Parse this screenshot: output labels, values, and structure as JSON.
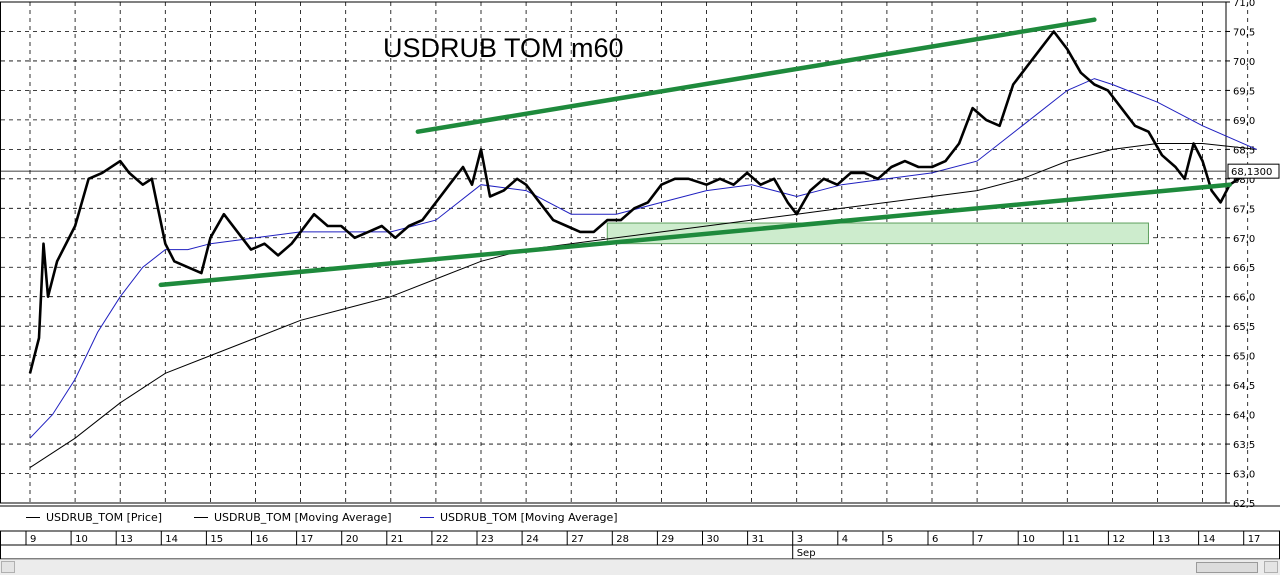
{
  "chart_data": {
    "type": "line",
    "title": "USDRUB TOM  m60",
    "ylim": [
      62.5,
      71.0
    ],
    "y_ticks": [
      "71,0",
      "70,5",
      "70,0",
      "69,5",
      "69,0",
      "68,5",
      "68,0",
      "67,5",
      "67,0",
      "66,5",
      "66,0",
      "65,5",
      "65,0",
      "64,5",
      "64,0",
      "63,5",
      "63,0",
      "62,5"
    ],
    "x_tick_labels": [
      "9",
      "10",
      "13",
      "14",
      "15",
      "16",
      "17",
      "20",
      "21",
      "22",
      "23",
      "24",
      "27",
      "28",
      "29",
      "30",
      "31",
      "3",
      "4",
      "5",
      "6",
      "7",
      "10",
      "11",
      "12",
      "13",
      "14",
      "17"
    ],
    "month_label": "Sep",
    "last_price_label": "68,1300",
    "last_price": 68.13,
    "legend_placement": "bottom",
    "series": [
      {
        "name": "USDRUB_TOM [Price]",
        "color": "#000000",
        "points": [
          [
            0,
            64.7
          ],
          [
            0.2,
            65.3
          ],
          [
            0.3,
            66.9
          ],
          [
            0.4,
            66.0
          ],
          [
            0.6,
            66.6
          ],
          [
            1.0,
            67.2
          ],
          [
            1.3,
            68.0
          ],
          [
            1.6,
            68.1
          ],
          [
            2.0,
            68.3
          ],
          [
            2.2,
            68.1
          ],
          [
            2.5,
            67.9
          ],
          [
            2.7,
            68.0
          ],
          [
            3.0,
            66.9
          ],
          [
            3.2,
            66.6
          ],
          [
            3.5,
            66.5
          ],
          [
            3.8,
            66.4
          ],
          [
            4.0,
            67.0
          ],
          [
            4.3,
            67.4
          ],
          [
            4.6,
            67.1
          ],
          [
            4.9,
            66.8
          ],
          [
            5.2,
            66.9
          ],
          [
            5.5,
            66.7
          ],
          [
            5.8,
            66.9
          ],
          [
            6.0,
            67.1
          ],
          [
            6.3,
            67.4
          ],
          [
            6.6,
            67.2
          ],
          [
            6.9,
            67.2
          ],
          [
            7.2,
            67.0
          ],
          [
            7.5,
            67.1
          ],
          [
            7.8,
            67.2
          ],
          [
            8.1,
            67.0
          ],
          [
            8.4,
            67.2
          ],
          [
            8.7,
            67.3
          ],
          [
            9.0,
            67.6
          ],
          [
            9.3,
            67.9
          ],
          [
            9.6,
            68.2
          ],
          [
            9.8,
            67.9
          ],
          [
            10.0,
            68.5
          ],
          [
            10.2,
            67.7
          ],
          [
            10.5,
            67.8
          ],
          [
            10.8,
            68.0
          ],
          [
            11.0,
            67.9
          ],
          [
            11.3,
            67.6
          ],
          [
            11.6,
            67.3
          ],
          [
            11.9,
            67.2
          ],
          [
            12.2,
            67.1
          ],
          [
            12.5,
            67.1
          ],
          [
            12.8,
            67.3
          ],
          [
            13.1,
            67.3
          ],
          [
            13.4,
            67.5
          ],
          [
            13.7,
            67.6
          ],
          [
            14.0,
            67.9
          ],
          [
            14.3,
            68.0
          ],
          [
            14.6,
            68.0
          ],
          [
            15.0,
            67.9
          ],
          [
            15.3,
            68.0
          ],
          [
            15.6,
            67.9
          ],
          [
            15.9,
            68.1
          ],
          [
            16.2,
            67.9
          ],
          [
            16.5,
            68.0
          ],
          [
            16.8,
            67.6
          ],
          [
            17.0,
            67.4
          ],
          [
            17.3,
            67.8
          ],
          [
            17.6,
            68.0
          ],
          [
            17.9,
            67.9
          ],
          [
            18.2,
            68.1
          ],
          [
            18.5,
            68.1
          ],
          [
            18.8,
            68.0
          ],
          [
            19.1,
            68.2
          ],
          [
            19.4,
            68.3
          ],
          [
            19.7,
            68.2
          ],
          [
            20.0,
            68.2
          ],
          [
            20.3,
            68.3
          ],
          [
            20.6,
            68.6
          ],
          [
            20.9,
            69.2
          ],
          [
            21.2,
            69.0
          ],
          [
            21.5,
            68.9
          ],
          [
            21.8,
            69.6
          ],
          [
            22.1,
            69.9
          ],
          [
            22.4,
            70.2
          ],
          [
            22.7,
            70.5
          ],
          [
            23.0,
            70.2
          ],
          [
            23.3,
            69.8
          ],
          [
            23.6,
            69.6
          ],
          [
            23.9,
            69.5
          ],
          [
            24.2,
            69.2
          ],
          [
            24.5,
            68.9
          ],
          [
            24.8,
            68.8
          ],
          [
            25.1,
            68.4
          ],
          [
            25.4,
            68.2
          ],
          [
            25.6,
            68.0
          ],
          [
            25.8,
            68.6
          ],
          [
            26.0,
            68.3
          ],
          [
            26.2,
            67.8
          ],
          [
            26.4,
            67.6
          ],
          [
            26.6,
            67.9
          ],
          [
            26.8,
            68.0
          ],
          [
            27.0,
            68.1
          ],
          [
            27.2,
            68.13
          ]
        ]
      },
      {
        "name": "USDRUB_TOM [Moving Average]",
        "color": "#000000",
        "points": [
          [
            0,
            63.1
          ],
          [
            1,
            63.6
          ],
          [
            2,
            64.2
          ],
          [
            3,
            64.7
          ],
          [
            4,
            65.0
          ],
          [
            5,
            65.3
          ],
          [
            6,
            65.6
          ],
          [
            7,
            65.8
          ],
          [
            8,
            66.0
          ],
          [
            9,
            66.3
          ],
          [
            10,
            66.6
          ],
          [
            11,
            66.8
          ],
          [
            12,
            66.9
          ],
          [
            13,
            67.0
          ],
          [
            14,
            67.1
          ],
          [
            15,
            67.2
          ],
          [
            16,
            67.3
          ],
          [
            17,
            67.4
          ],
          [
            18,
            67.5
          ],
          [
            19,
            67.6
          ],
          [
            20,
            67.7
          ],
          [
            21,
            67.8
          ],
          [
            22,
            68.0
          ],
          [
            23,
            68.3
          ],
          [
            24,
            68.5
          ],
          [
            25,
            68.6
          ],
          [
            26,
            68.6
          ],
          [
            27.2,
            68.5
          ]
        ]
      },
      {
        "name": "USDRUB_TOM [Moving Average]",
        "color": "#2020c0",
        "points": [
          [
            0,
            63.6
          ],
          [
            0.5,
            64.0
          ],
          [
            1,
            64.6
          ],
          [
            1.5,
            65.4
          ],
          [
            2,
            66.0
          ],
          [
            2.5,
            66.5
          ],
          [
            3,
            66.8
          ],
          [
            3.5,
            66.8
          ],
          [
            4,
            66.9
          ],
          [
            5,
            67.0
          ],
          [
            6,
            67.1
          ],
          [
            7,
            67.1
          ],
          [
            8,
            67.1
          ],
          [
            9,
            67.3
          ],
          [
            10,
            67.9
          ],
          [
            11,
            67.8
          ],
          [
            12,
            67.4
          ],
          [
            13,
            67.4
          ],
          [
            14,
            67.6
          ],
          [
            15,
            67.8
          ],
          [
            16,
            67.9
          ],
          [
            17,
            67.7
          ],
          [
            18,
            67.9
          ],
          [
            19,
            68.0
          ],
          [
            20,
            68.1
          ],
          [
            21,
            68.3
          ],
          [
            22,
            68.9
          ],
          [
            23,
            69.5
          ],
          [
            23.6,
            69.7
          ],
          [
            24,
            69.6
          ],
          [
            25,
            69.3
          ],
          [
            26,
            68.9
          ],
          [
            27.2,
            68.5
          ]
        ]
      }
    ],
    "annotations": [
      {
        "kind": "trendline",
        "color": "#1e8a3c",
        "from": [
          2.9,
          66.2
        ],
        "to": [
          26.6,
          67.9
        ]
      },
      {
        "kind": "trendline",
        "color": "#1e8a3c",
        "from": [
          8.6,
          68.8
        ],
        "to": [
          23.6,
          70.7
        ]
      },
      {
        "kind": "zone",
        "color": "#cdeccd",
        "x": [
          12.8,
          24.8
        ],
        "y": [
          66.9,
          67.25
        ]
      }
    ]
  }
}
